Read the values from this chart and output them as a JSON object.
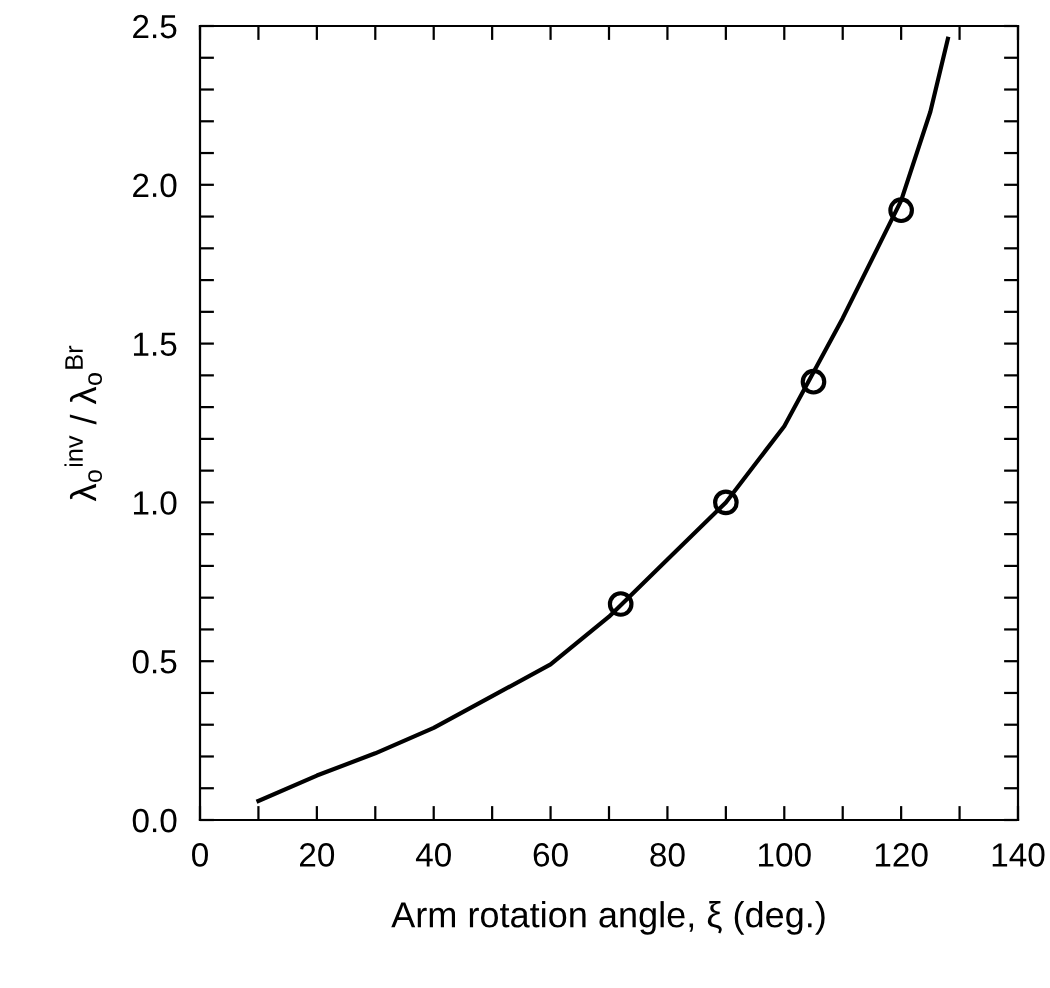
{
  "chart_data": {
    "type": "scatter",
    "xlabel": "Arm rotation angle, ξ (deg.)",
    "ylabel": "λ$_{o}$$^{inv}$ / λ$_{o}$$^{Br}$",
    "xlim": [
      0,
      140
    ],
    "ylim": [
      0,
      2.5
    ],
    "xticks": [
      0,
      {
        "value": 10,
        "label": null
      },
      20,
      {
        "value": 30,
        "label": null
      },
      40,
      {
        "value": 50,
        "label": null
      },
      60,
      {
        "value": 70,
        "label": null
      },
      80,
      {
        "value": 90,
        "label": null
      },
      100,
      {
        "value": 110,
        "label": null
      },
      120,
      {
        "value": 130,
        "label": null
      },
      140
    ],
    "yticks": [
      {
        "value": 0,
        "label": "0.0"
      },
      {
        "value": 0.1,
        "label": null
      },
      {
        "value": 0.2,
        "label": null
      },
      {
        "value": 0.3,
        "label": null
      },
      {
        "value": 0.4,
        "label": null
      },
      {
        "value": 0.5,
        "label": "0.5"
      },
      {
        "value": 0.6,
        "label": null
      },
      {
        "value": 0.7,
        "label": null
      },
      {
        "value": 0.8,
        "label": null
      },
      {
        "value": 0.9,
        "label": null
      },
      {
        "value": 1.0,
        "label": "1.0"
      },
      {
        "value": 1.1,
        "label": null
      },
      {
        "value": 1.2,
        "label": null
      },
      {
        "value": 1.3,
        "label": null
      },
      {
        "value": 1.4,
        "label": null
      },
      {
        "value": 1.5,
        "label": "1.5"
      },
      {
        "value": 1.6,
        "label": null
      },
      {
        "value": 1.7,
        "label": null
      },
      {
        "value": 1.8,
        "label": null
      },
      {
        "value": 1.9,
        "label": null
      },
      {
        "value": 2.0,
        "label": "2.0"
      },
      {
        "value": 2.1,
        "label": null
      },
      {
        "value": 2.2,
        "label": null
      },
      {
        "value": 2.3,
        "label": null
      },
      {
        "value": 2.4,
        "label": null
      },
      {
        "value": 2.5,
        "label": "2.5"
      }
    ],
    "grid": false,
    "legend": false,
    "series": [
      {
        "type": "line",
        "color": "#000000",
        "marker": "none",
        "line_style": "solid",
        "x": [
          10,
          20,
          30,
          40,
          50,
          60,
          70,
          80,
          90,
          100,
          110,
          120,
          125,
          128
        ],
        "values": [
          0.06,
          0.14,
          0.21,
          0.29,
          0.39,
          0.49,
          0.64,
          0.82,
          1.0,
          1.24,
          1.58,
          1.95,
          2.23,
          2.46
        ]
      },
      {
        "color": "#000000",
        "marker": "circle",
        "x": [
          72,
          90,
          105,
          120
        ],
        "values": [
          0.68,
          1.0,
          1.38,
          1.92
        ]
      }
    ]
  }
}
